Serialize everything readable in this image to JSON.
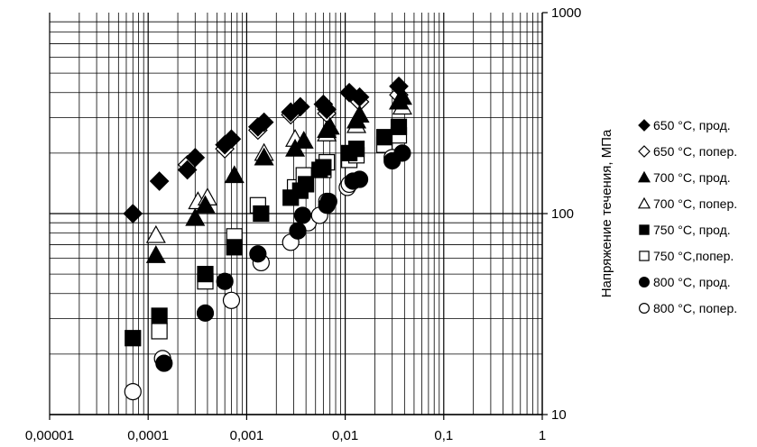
{
  "chart_data": {
    "type": "scatter",
    "title": "",
    "xlabel": "",
    "ylabel": "Напряжение течения, МПа",
    "x_scale": "log",
    "y_scale": "log",
    "xlim": [
      1e-05,
      1
    ],
    "ylim": [
      10,
      1000
    ],
    "x_tick_labels": [
      "0,00001",
      "0,0001",
      "0,001",
      "0,01",
      "0,1",
      "1"
    ],
    "y_tick_labels": [
      "10",
      "100",
      "1000"
    ],
    "grid": true,
    "legend_position": "right",
    "series": [
      {
        "name": "650 °С, прод.",
        "marker": "diamond",
        "filled": true,
        "x": [
          7e-05,
          0.00013,
          0.00025,
          0.0003,
          0.0006,
          0.0007,
          0.0013,
          0.0015,
          0.0028,
          0.0035,
          0.006,
          0.0065,
          0.011,
          0.014,
          0.035
        ],
        "y": [
          100,
          145,
          165,
          190,
          220,
          235,
          270,
          285,
          320,
          340,
          350,
          330,
          400,
          380,
          430
        ]
      },
      {
        "name": "650 °С, попер.",
        "marker": "diamond",
        "filled": false,
        "x": [
          0.00025,
          0.0006,
          0.0013,
          0.0028,
          0.0065,
          0.014,
          0.035
        ],
        "y": [
          175,
          210,
          260,
          310,
          315,
          360,
          390
        ]
      },
      {
        "name": "700 °С, прод.",
        "marker": "triangle",
        "filled": true,
        "x": [
          0.00012,
          0.0003,
          0.00038,
          0.00075,
          0.0015,
          0.0031,
          0.0038,
          0.0065,
          0.007,
          0.013,
          0.014,
          0.035,
          0.038
        ],
        "y": [
          62,
          95,
          110,
          155,
          190,
          210,
          230,
          260,
          270,
          290,
          310,
          360,
          380
        ]
      },
      {
        "name": "700 °С, попер.",
        "marker": "triangle",
        "filled": false,
        "x": [
          0.00012,
          0.00032,
          0.0004,
          0.0015,
          0.0031,
          0.0065,
          0.013,
          0.038
        ],
        "y": [
          78,
          115,
          120,
          200,
          235,
          250,
          275,
          340
        ]
      },
      {
        "name": "750 °С, прод.",
        "marker": "square",
        "filled": true,
        "x": [
          7e-05,
          0.00013,
          0.00038,
          0.00075,
          0.0014,
          0.0028,
          0.0035,
          0.004,
          0.0055,
          0.006,
          0.011,
          0.013,
          0.025,
          0.035
        ],
        "y": [
          24,
          31,
          50,
          68,
          100,
          120,
          130,
          140,
          165,
          170,
          200,
          210,
          240,
          270
        ]
      },
      {
        "name": "750 °С,попер.",
        "marker": "square",
        "filled": false,
        "x": [
          0.00013,
          0.00038,
          0.00075,
          0.0013,
          0.0031,
          0.0038,
          0.006,
          0.0065,
          0.011,
          0.013,
          0.025,
          0.035
        ],
        "y": [
          26,
          46,
          77,
          110,
          135,
          155,
          165,
          180,
          185,
          195,
          220,
          245
        ]
      },
      {
        "name": "800 °С, прод.",
        "marker": "circle",
        "filled": true,
        "x": [
          0.000145,
          0.00038,
          0.0006,
          0.0013,
          0.0033,
          0.0037,
          0.0065,
          0.0068,
          0.012,
          0.014,
          0.03,
          0.038
        ],
        "y": [
          18,
          32,
          46,
          63,
          82,
          98,
          110,
          115,
          145,
          148,
          183,
          200
        ]
      },
      {
        "name": "800 °С, попер.",
        "marker": "circle",
        "filled": false,
        "x": [
          7e-05,
          0.00014,
          0.0007,
          0.0014,
          0.0028,
          0.0042,
          0.0055,
          0.0065,
          0.0105,
          0.011,
          0.03
        ],
        "y": [
          13,
          19,
          37,
          57,
          72,
          90,
          98,
          115,
          135,
          140,
          190
        ]
      }
    ]
  }
}
